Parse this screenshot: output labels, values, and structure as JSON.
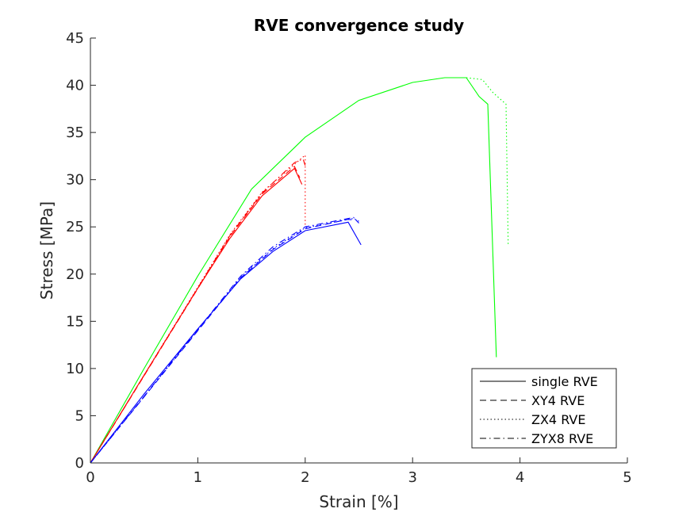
{
  "chart_data": {
    "type": "line",
    "title": "RVE convergence study",
    "xlabel": "Strain [%]",
    "ylabel": "Stress [MPa]",
    "xlim": [
      0,
      5
    ],
    "ylim": [
      0,
      45
    ],
    "xticks": [
      0,
      1,
      2,
      3,
      4,
      5
    ],
    "yticks": [
      0,
      5,
      10,
      15,
      20,
      25,
      30,
      35,
      40,
      45
    ],
    "grid": false,
    "legend_position": "bottom-right",
    "legend": [
      {
        "label": "single RVE",
        "dash": "solid"
      },
      {
        "label": "XY4 RVE",
        "dash": "dashed"
      },
      {
        "label": "ZX4 RVE",
        "dash": "dotted"
      },
      {
        "label": "ZYX8 RVE",
        "dash": "dashdot"
      }
    ],
    "series": [
      {
        "group": "green",
        "color": "#00ff00",
        "dash": "solid",
        "points": [
          [
            0,
            0
          ],
          [
            0.5,
            10
          ],
          [
            1.0,
            19.8
          ],
          [
            1.5,
            29.0
          ],
          [
            2.0,
            34.5
          ],
          [
            2.5,
            38.4
          ],
          [
            3.0,
            40.3
          ],
          [
            3.3,
            40.8
          ],
          [
            3.5,
            40.8
          ],
          [
            3.62,
            38.8
          ],
          [
            3.7,
            38.0
          ],
          [
            3.78,
            11.2
          ]
        ]
      },
      {
        "group": "green",
        "color": "#00ff00",
        "dash": "dotted",
        "points": [
          [
            3.5,
            40.8
          ],
          [
            3.65,
            40.6
          ],
          [
            3.75,
            39.2
          ],
          [
            3.87,
            38.0
          ],
          [
            3.89,
            23.1
          ]
        ]
      },
      {
        "group": "red",
        "color": "#ff0000",
        "dash": "solid",
        "points": [
          [
            0,
            0
          ],
          [
            0.5,
            9.3
          ],
          [
            1.0,
            18.5
          ],
          [
            1.3,
            23.8
          ],
          [
            1.6,
            28.3
          ],
          [
            1.9,
            31.2
          ],
          [
            1.97,
            29.5
          ]
        ]
      },
      {
        "group": "red",
        "color": "#ff0000",
        "dash": "dashed",
        "points": [
          [
            0,
            0
          ],
          [
            1.3,
            24.0
          ],
          [
            1.6,
            28.5
          ],
          [
            1.9,
            31.4
          ],
          [
            1.95,
            30.2
          ]
        ]
      },
      {
        "group": "red",
        "color": "#ff0000",
        "dash": "dotted",
        "points": [
          [
            0,
            0
          ],
          [
            1.3,
            24.2
          ],
          [
            1.6,
            28.7
          ],
          [
            2.0,
            32.6
          ],
          [
            2.0,
            25.0
          ]
        ]
      },
      {
        "group": "red",
        "color": "#ff0000",
        "dash": "dashdot",
        "points": [
          [
            0,
            0
          ],
          [
            1.3,
            24.1
          ],
          [
            1.6,
            28.6
          ],
          [
            1.9,
            31.8
          ],
          [
            1.98,
            32.2
          ],
          [
            2.0,
            31.5
          ]
        ]
      },
      {
        "group": "blue",
        "color": "#0000ff",
        "dash": "solid",
        "points": [
          [
            0,
            0
          ],
          [
            0.5,
            7.3
          ],
          [
            1.0,
            14.2
          ],
          [
            1.4,
            19.5
          ],
          [
            1.7,
            22.4
          ],
          [
            2.0,
            24.6
          ],
          [
            2.4,
            25.5
          ],
          [
            2.52,
            23.1
          ]
        ]
      },
      {
        "group": "blue",
        "color": "#0000ff",
        "dash": "dashed",
        "points": [
          [
            0,
            0
          ],
          [
            1.4,
            19.6
          ],
          [
            1.7,
            22.6
          ],
          [
            2.0,
            24.8
          ],
          [
            2.4,
            25.8
          ],
          [
            2.48,
            25.7
          ]
        ]
      },
      {
        "group": "blue",
        "color": "#0000ff",
        "dash": "dotted",
        "points": [
          [
            0,
            0
          ],
          [
            1.4,
            19.7
          ],
          [
            1.7,
            22.7
          ],
          [
            2.0,
            24.9
          ],
          [
            2.45,
            25.9
          ],
          [
            2.5,
            25.6
          ]
        ]
      },
      {
        "group": "blue",
        "color": "#0000ff",
        "dash": "dashdot",
        "points": [
          [
            0,
            0
          ],
          [
            1.4,
            19.8
          ],
          [
            1.7,
            22.9
          ],
          [
            2.0,
            25.0
          ],
          [
            2.45,
            26.0
          ],
          [
            2.5,
            25.4
          ]
        ]
      }
    ]
  }
}
